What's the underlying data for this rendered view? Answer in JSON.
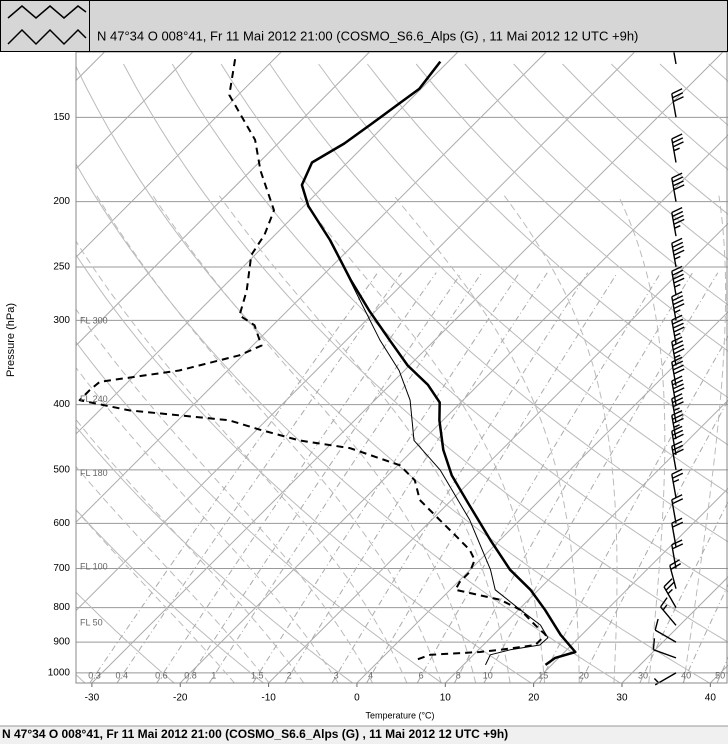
{
  "header": {
    "title": "N 47°34 O 008°41, Fr 11 Mai 2012 21:00 (COSMO_S6.6_Alps (G) , 11 Mai 2012 12 UTC +9h)"
  },
  "status_bar": {
    "text": "N 47°34 O 008°41, Fr 11 Mai 2012 21:00 (COSMO_S6.6_Alps (G) , 11 Mai 2012 12 UTC +9h)"
  },
  "chart_data": {
    "type": "skew-t",
    "xlabel": "Temperature (°C)",
    "ylabel": "Pressure (hPa)",
    "xlim": [
      -31.8,
      42
    ],
    "ylim": [
      1035,
      120
    ],
    "y_log_scale": true,
    "skew_angle": 45,
    "xticks": [
      -30,
      -20,
      -10,
      0,
      10,
      20,
      30,
      40
    ],
    "yticks": [
      150,
      200,
      250,
      300,
      400,
      500,
      600,
      700,
      800,
      900,
      1000
    ],
    "grid": true,
    "series": [
      {
        "color": "#000000",
        "line_width": 2.5,
        "line_style": "solid",
        "pressure": [
          124,
          136,
          143,
          154,
          164,
          175,
          189,
          203,
          228,
          262,
          290,
          321,
          350,
          374,
          397,
          422,
          467,
          509,
          564,
          635,
          703,
          753,
          806,
          878,
          931,
          950,
          973
        ],
        "values": [
          -60.9,
          -60.2,
          -60.8,
          -61.7,
          -62.5,
          -64.0,
          -62.6,
          -59.5,
          -53.2,
          -46.2,
          -40.8,
          -35.1,
          -30.2,
          -25.7,
          -22.4,
          -20.4,
          -16.6,
          -12.8,
          -7.4,
          -1.1,
          4.5,
          9.1,
          13.0,
          17.6,
          21.2,
          19.6,
          19.3
        ]
      },
      {
        "color": "#000000",
        "line_width": 2,
        "line_style": "dashed",
        "pressure": [
          123,
          139,
          162,
          180,
          206,
          224,
          240,
          271,
          295,
          305,
          327,
          338,
          356,
          370,
          381,
          394,
          408,
          422,
          436,
          452,
          464,
          492,
          518,
          554,
          593,
          624,
          657,
          680,
          708,
          733,
          753,
          779,
          806,
          849,
          878,
          909,
          924,
          931,
          940,
          957
        ],
        "values": [
          -84.4,
          -81.0,
          -73.0,
          -68.9,
          -62.9,
          -61.2,
          -60.4,
          -56.9,
          -54.9,
          -52.1,
          -49.0,
          -50.4,
          -55.5,
          -63.2,
          -63.4,
          -63.4,
          -56.6,
          -44.2,
          -39.6,
          -34.0,
          -27.4,
          -19.8,
          -16.4,
          -13.6,
          -9.1,
          -5.7,
          -2.3,
          -0.6,
          0.2,
          0.2,
          0.6,
          6.8,
          10.2,
          13.6,
          15.9,
          15.9,
          12.5,
          10.4,
          5.1,
          4.0
        ]
      },
      {
        "color": "#000000",
        "line_width": 1,
        "line_style": "solid",
        "pressure": [
          236,
          280,
          321,
          356,
          394,
          452,
          500,
          593,
          703,
          753,
          806,
          849,
          887,
          909,
          924,
          940,
          973
        ],
        "values": [
          -51.5,
          -43.0,
          -36.2,
          -30.6,
          -26.0,
          -21.0,
          -14.7,
          -5.7,
          2.3,
          5.1,
          10.2,
          14.2,
          16.5,
          16.4,
          13.6,
          11.9,
          12.5
        ]
      }
    ],
    "flight_levels": [
      {
        "label": "FL 300",
        "pressure": 301
      },
      {
        "label": "FL 240",
        "pressure": 393
      },
      {
        "label": "FL 180",
        "pressure": 506
      },
      {
        "label": "FL 100",
        "pressure": 697
      },
      {
        "label": "FL 50",
        "pressure": 843
      }
    ],
    "mixing_ratio": {
      "values": [
        0.3,
        0.4,
        0.6,
        0.8,
        1,
        1.5,
        2,
        3,
        4,
        6,
        8,
        10,
        15,
        20,
        30,
        40,
        50
      ]
    },
    "wind": {
      "pressure": [
        125,
        150,
        175,
        200,
        225,
        250,
        275,
        300,
        325,
        350,
        375,
        400,
        425,
        450,
        475,
        500,
        550,
        600,
        650,
        700,
        750,
        800,
        850,
        900,
        950,
        1000
      ],
      "speed": [
        25,
        30,
        35,
        40,
        45,
        45,
        45,
        45,
        45,
        45,
        40,
        40,
        35,
        35,
        30,
        30,
        25,
        20,
        20,
        20,
        20,
        25,
        15,
        10,
        10,
        5
      ],
      "direction": [
        350,
        350,
        350,
        350,
        350,
        350,
        350,
        350,
        350,
        350,
        350,
        350,
        350,
        350,
        350,
        350,
        350,
        350,
        350,
        350,
        345,
        330,
        320,
        300,
        290,
        240
      ]
    }
  }
}
